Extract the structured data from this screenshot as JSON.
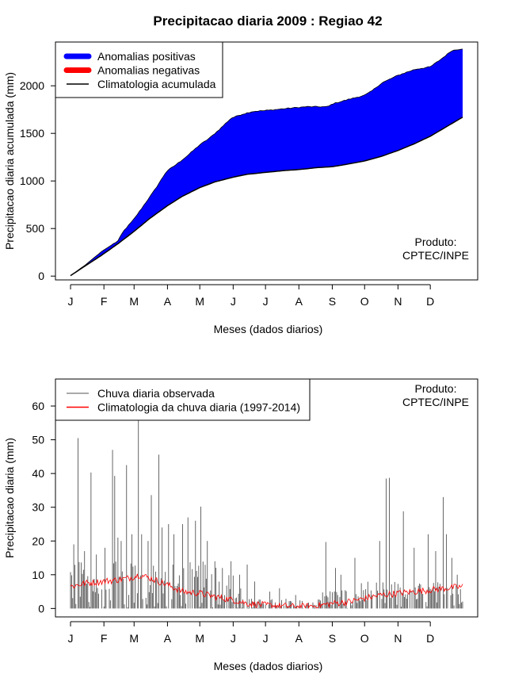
{
  "page_title": "Precipitacao diaria 2009 : Regiao 42",
  "chart_data": [
    {
      "type": "area",
      "title": "Precipitacao diaria 2009 : Regiao 42",
      "xlabel": "Meses (dados diarios)",
      "ylabel": "Precipitacao diaria acumulada (mm)",
      "x_tick_labels": [
        "J",
        "F",
        "M",
        "A",
        "M",
        "J",
        "J",
        "A",
        "S",
        "O",
        "N",
        "D"
      ],
      "x_tick_days": [
        1,
        32,
        60,
        91,
        121,
        152,
        182,
        213,
        244,
        274,
        305,
        335
      ],
      "xlim": [
        -13,
        379
      ],
      "ylim": [
        -40,
        2460
      ],
      "y_ticks": [
        0,
        500,
        1000,
        1500,
        2000
      ],
      "legend": {
        "position": "top-left",
        "entries": [
          {
            "label": "Anomalias positivas",
            "color": "#0000ff",
            "style": "thick"
          },
          {
            "label": "Anomalias negativas",
            "color": "#ff0000",
            "style": "thick"
          },
          {
            "label": "Climatologia acumulada",
            "color": "#000000",
            "style": "line"
          }
        ]
      },
      "annotation": [
        "Produto:",
        "CPTEC/INPE"
      ],
      "observed_accumulated": {
        "x": [
          1,
          15,
          30,
          45,
          50,
          60,
          70,
          80,
          90,
          100,
          110,
          121,
          130,
          140,
          150,
          160,
          170,
          182,
          200,
          220,
          240,
          244,
          260,
          274,
          280,
          290,
          305,
          320,
          335,
          345,
          355,
          365
        ],
        "y": [
          5,
          120,
          260,
          370,
          470,
          600,
          760,
          920,
          1100,
          1180,
          1270,
          1380,
          1450,
          1550,
          1660,
          1700,
          1730,
          1740,
          1760,
          1780,
          1780,
          1810,
          1860,
          1900,
          1940,
          2030,
          2110,
          2170,
          2200,
          2280,
          2370,
          2390
        ]
      },
      "climatology_accumulated": {
        "x": [
          1,
          15,
          30,
          45,
          60,
          75,
          91,
          105,
          121,
          135,
          152,
          165,
          182,
          200,
          213,
          230,
          244,
          260,
          274,
          290,
          305,
          320,
          335,
          350,
          365
        ],
        "y": [
          5,
          110,
          220,
          340,
          470,
          610,
          740,
          840,
          930,
          990,
          1040,
          1070,
          1090,
          1110,
          1120,
          1140,
          1150,
          1180,
          1210,
          1260,
          1320,
          1390,
          1470,
          1570,
          1670
        ]
      }
    },
    {
      "type": "line",
      "xlabel": "Meses (dados diarios)",
      "ylabel": "Precipitacao diaria (mm)",
      "x_tick_labels": [
        "J",
        "F",
        "M",
        "A",
        "M",
        "J",
        "J",
        "A",
        "S",
        "O",
        "N",
        "D"
      ],
      "x_tick_days": [
        1,
        32,
        60,
        91,
        121,
        152,
        182,
        213,
        244,
        274,
        305,
        335
      ],
      "xlim": [
        -13,
        379
      ],
      "ylim": [
        -2.5,
        68
      ],
      "y_ticks": [
        0,
        10,
        20,
        30,
        40,
        50,
        60
      ],
      "legend": {
        "position": "top-left",
        "entries": [
          {
            "label": "Chuva diaria observada",
            "color": "#555555",
            "style": "line"
          },
          {
            "label": "Climatologia da chuva diaria (1997-2014)",
            "color": "#ff0000",
            "style": "line"
          }
        ]
      },
      "annotation": [
        "Produto:",
        "CPTEC/INPE"
      ],
      "observed_daily_peaks": [
        {
          "day": 4,
          "value": 19
        },
        {
          "day": 8,
          "value": 50.5
        },
        {
          "day": 14,
          "value": 17
        },
        {
          "day": 20,
          "value": 40.3
        },
        {
          "day": 25,
          "value": 16
        },
        {
          "day": 33,
          "value": 18
        },
        {
          "day": 40,
          "value": 47
        },
        {
          "day": 42,
          "value": 39.3
        },
        {
          "day": 45,
          "value": 21
        },
        {
          "day": 48,
          "value": 20
        },
        {
          "day": 53,
          "value": 42.5
        },
        {
          "day": 58,
          "value": 22
        },
        {
          "day": 64,
          "value": 56
        },
        {
          "day": 67,
          "value": 22
        },
        {
          "day": 73,
          "value": 20
        },
        {
          "day": 76,
          "value": 33.6
        },
        {
          "day": 83,
          "value": 45.6
        },
        {
          "day": 86,
          "value": 24
        },
        {
          "day": 92,
          "value": 25
        },
        {
          "day": 97,
          "value": 22
        },
        {
          "day": 105,
          "value": 25
        },
        {
          "day": 110,
          "value": 27
        },
        {
          "day": 117,
          "value": 26
        },
        {
          "day": 122,
          "value": 30.2
        },
        {
          "day": 128,
          "value": 20
        },
        {
          "day": 135,
          "value": 14
        },
        {
          "day": 142,
          "value": 12
        },
        {
          "day": 150,
          "value": 14
        },
        {
          "day": 158,
          "value": 10
        },
        {
          "day": 165,
          "value": 13
        },
        {
          "day": 172,
          "value": 8
        },
        {
          "day": 186,
          "value": 5
        },
        {
          "day": 195,
          "value": 6
        },
        {
          "day": 210,
          "value": 4
        },
        {
          "day": 238,
          "value": 19.7
        },
        {
          "day": 247,
          "value": 12
        },
        {
          "day": 252,
          "value": 10
        },
        {
          "day": 265,
          "value": 15
        },
        {
          "day": 288,
          "value": 20
        },
        {
          "day": 294,
          "value": 38.5
        },
        {
          "day": 297,
          "value": 38.7
        },
        {
          "day": 310,
          "value": 28.8
        },
        {
          "day": 320,
          "value": 18
        },
        {
          "day": 333,
          "value": 22
        },
        {
          "day": 340,
          "value": 17
        },
        {
          "day": 347,
          "value": 33
        },
        {
          "day": 350,
          "value": 22
        },
        {
          "day": 355,
          "value": 15
        },
        {
          "day": 360,
          "value": 10
        }
      ],
      "climatology_daily": {
        "x": [
          1,
          15,
          30,
          45,
          55,
          65,
          75,
          91,
          105,
          121,
          135,
          152,
          165,
          182,
          200,
          213,
          230,
          244,
          260,
          274,
          290,
          305,
          320,
          335,
          350,
          365
        ],
        "y": [
          6.5,
          7.5,
          8,
          8.5,
          9,
          10,
          9,
          7,
          5,
          4.5,
          3.5,
          2.5,
          1.5,
          1,
          0.7,
          0.5,
          0.8,
          1.5,
          2,
          3,
          4,
          4.5,
          5,
          5.5,
          6,
          6.5
        ]
      }
    }
  ]
}
